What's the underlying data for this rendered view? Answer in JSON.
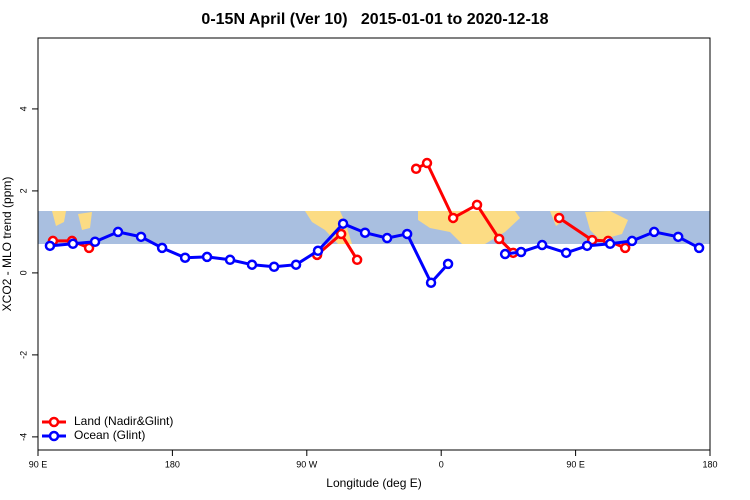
{
  "chart_data": {
    "type": "line",
    "title": "0-15N April (Ver 10)   2015-01-01 to 2020-12-18",
    "x_label": "Longitude (deg E)",
    "y_label": "XCO2 - MLO trend (ppm)",
    "xlim": [
      90,
      540
    ],
    "ylim": [
      -4.32,
      5.73
    ],
    "xticks": [
      {
        "value": 90,
        "label": "90 E"
      },
      180,
      {
        "value": 270,
        "label": "90 W"
      },
      {
        "value": 360,
        "label": "0"
      },
      {
        "value": 450,
        "label": "90 E"
      },
      {
        "value": 540,
        "label": "180"
      }
    ],
    "yticks": [
      -4,
      -2,
      0,
      2,
      4
    ],
    "legend": "bottomleft",
    "series": [
      {
        "name": "Land (Nadir&Glint)",
        "color": "#ff0000",
        "x": [
          100.0,
          112.8,
          124.2,
          null,
          276.9,
          293.0,
          303.7,
          null,
          343.2,
          350.5,
          368.0,
          384.0,
          398.8,
          408.2,
          null,
          439.0,
          461.1,
          471.8,
          483.2
        ],
        "values": [
          0.78,
          0.78,
          0.61,
          null,
          0.44,
          0.95,
          0.32,
          null,
          2.54,
          2.68,
          1.34,
          1.66,
          0.83,
          0.49,
          null,
          1.34,
          0.8,
          0.78,
          0.61
        ]
      },
      {
        "name": "Ocean (Glint)",
        "color": "#0000ff",
        "x": [
          98.0,
          113.4,
          128.2,
          143.6,
          159.0,
          173.1,
          188.5,
          203.2,
          218.6,
          233.3,
          248.1,
          262.8,
          277.5,
          294.3,
          309.0,
          323.8,
          337.2,
          353.2,
          364.6,
          null,
          402.8,
          413.5,
          427.6,
          443.7,
          457.7,
          473.1,
          487.8,
          502.6,
          518.7,
          532.7
        ],
        "values": [
          0.66,
          0.71,
          0.76,
          1.0,
          0.88,
          0.61,
          0.37,
          0.39,
          0.32,
          0.2,
          0.15,
          0.2,
          0.54,
          1.2,
          0.98,
          0.85,
          0.95,
          -0.24,
          0.22,
          null,
          0.46,
          0.51,
          0.68,
          0.49,
          0.66,
          0.71,
          0.78,
          1.0,
          0.88,
          0.61
        ]
      }
    ]
  }
}
